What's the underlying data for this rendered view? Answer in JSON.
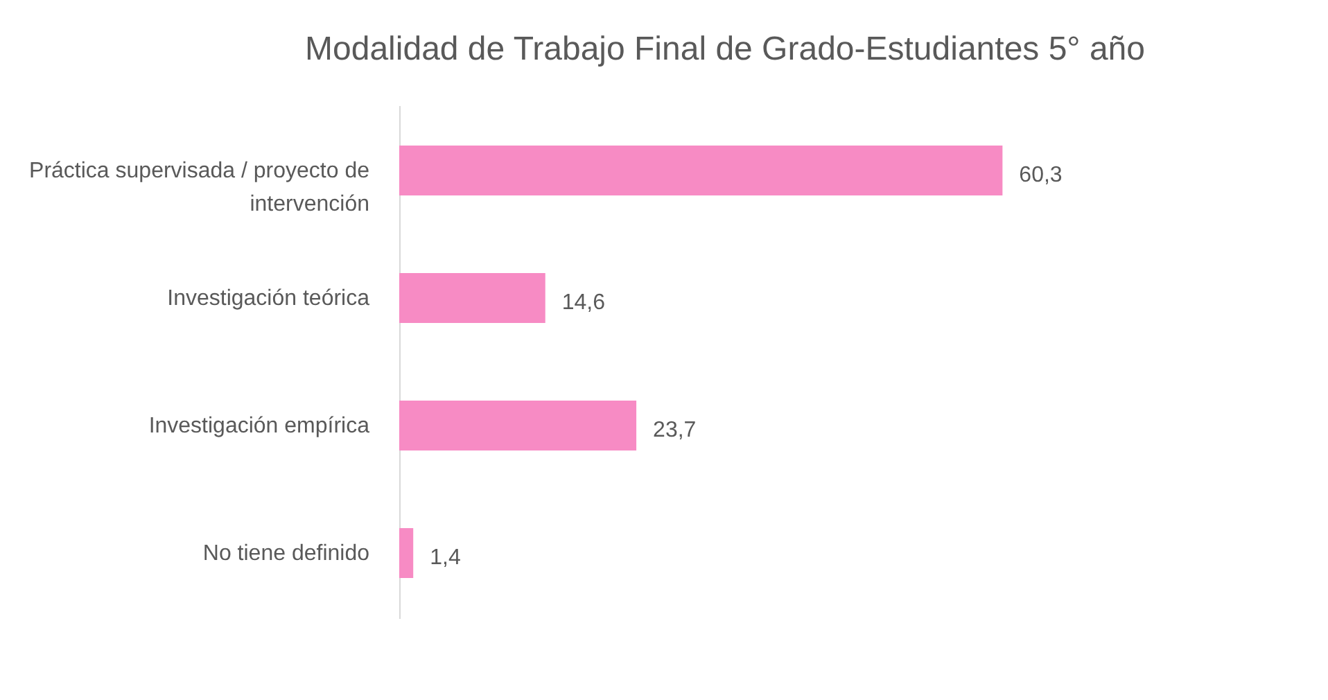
{
  "chart_data": {
    "type": "bar",
    "orientation": "horizontal",
    "title": "Modalidad de Trabajo Final de Grado-Estudiantes 5° año",
    "categories": [
      "Práctica supervisada / proyecto de intervención",
      "Investigación teórica",
      "Investigación empírica",
      "No tiene definido"
    ],
    "values": [
      60.3,
      14.6,
      23.7,
      1.4
    ],
    "value_labels": [
      "60,3",
      "14,6",
      "23,7",
      "1,4"
    ],
    "color": "#f78bc4",
    "grid": false
  }
}
